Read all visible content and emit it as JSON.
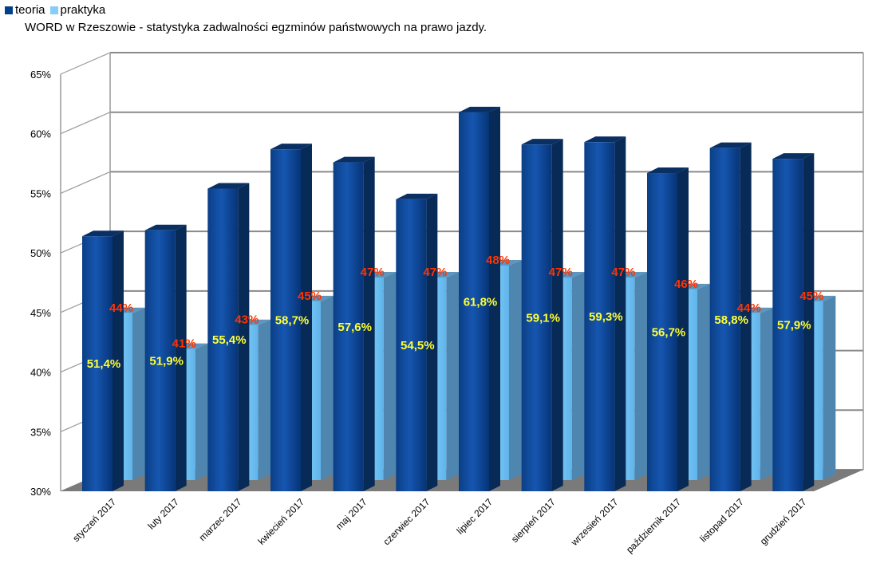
{
  "legend": {
    "items": [
      {
        "name": "teoria",
        "color": "#003f8a"
      },
      {
        "name": "praktyka",
        "color": "#87cdfa"
      }
    ]
  },
  "title": "WORD w Rzeszowie - statystyka zadwalności egzminów państwowych na prawo jazdy.",
  "chart_data": {
    "type": "bar",
    "title": "WORD w Rzeszowie - statystyka zadwalności egzminów państwowych na prawo jazdy.",
    "xlabel": "",
    "ylabel": "",
    "ylim": [
      30,
      65
    ],
    "yticks": [
      30,
      35,
      40,
      45,
      50,
      55,
      60,
      65
    ],
    "ytick_labels": [
      "30%",
      "35%",
      "40%",
      "45%",
      "50%",
      "55%",
      "60%",
      "65%"
    ],
    "grid": true,
    "legend_position": "top-left",
    "categories": [
      "styczeń 2017",
      "luty 2017",
      "marzec 2017",
      "kwiecień 2017",
      "maj 2017",
      "czerwiec 2017",
      "lipiec 2017",
      "sierpień 2017",
      "wrzesień 2017",
      "październik 2017",
      "listopad 2017",
      "grudzień 2017"
    ],
    "series": [
      {
        "name": "teoria",
        "color": "#003f8a",
        "values": [
          51.4,
          51.9,
          55.4,
          58.7,
          57.6,
          54.5,
          61.8,
          59.1,
          59.3,
          56.7,
          58.8,
          57.9
        ],
        "labels": [
          "51,4%",
          "51,9%",
          "55,4%",
          "58,7%",
          "57,6%",
          "54,5%",
          "61,8%",
          "59,1%",
          "59,3%",
          "56,7%",
          "58,8%",
          "57,9%"
        ]
      },
      {
        "name": "praktyka",
        "color": "#87cdfa",
        "values": [
          44,
          41,
          43,
          45,
          47,
          47,
          48,
          47,
          47,
          46,
          44,
          45
        ],
        "labels": [
          "44%",
          "41%",
          "43%",
          "45%",
          "47%",
          "47%",
          "48%",
          "47%",
          "47%",
          "46%",
          "44%",
          "45%"
        ]
      }
    ]
  }
}
